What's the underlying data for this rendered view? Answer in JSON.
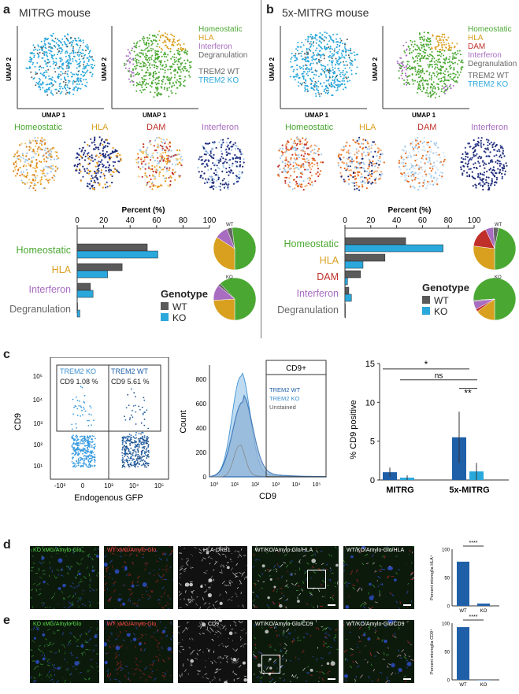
{
  "panel_a": {
    "letter": "a",
    "title": "MITRG mouse",
    "umap_axis_x": "UMAP 1",
    "umap_axis_y": "UMAP 2",
    "cluster_legend": [
      "Homeostatic",
      "HLA",
      "Interferon",
      "Degranulation"
    ],
    "genotype_legend": [
      "TREM2 WT",
      "TREM2 KO"
    ],
    "feature_titles": [
      "Homeostatic",
      "HLA",
      "DAM",
      "Interferon"
    ],
    "genotype_title": "Genotype",
    "genotype_items": [
      "WT",
      "KO"
    ],
    "pie_labels": [
      "WT",
      "KO"
    ]
  },
  "panel_b": {
    "letter": "b",
    "title": "5x-MITRG mouse",
    "umap_axis_x": "UMAP 1",
    "umap_axis_y": "UMAP 2",
    "cluster_legend": [
      "Homeostatic",
      "HLA",
      "DAM",
      "Interferon",
      "Degranulation"
    ],
    "genotype_legend": [
      "TREM2 WT",
      "TREM2 KO"
    ],
    "feature_titles": [
      "Homeostatic",
      "HLA",
      "DAM",
      "Interferon"
    ],
    "genotype_title": "Genotype",
    "genotype_items": [
      "WT",
      "KO"
    ],
    "pie_labels": [
      "WT",
      "KO"
    ]
  },
  "panel_c": {
    "letter": "c",
    "flow": {
      "gate_left": "TREM2 KO",
      "gate_left_val": "CD9 1.08 %",
      "gate_right": "TREM2 WT",
      "gate_right_val": "CD9 5.61 %",
      "ylabel": "CD9",
      "xlabel": "Endogenous GFP",
      "yticks": [
        "10⁵",
        "10⁴",
        "10³",
        "10²",
        "10¹"
      ],
      "xticks": [
        "-10³",
        "0",
        "10³",
        "10⁴",
        "10⁵"
      ]
    },
    "hist": {
      "gate": "CD9+",
      "legend": [
        "TREM2 WT",
        "TREM2 KO",
        "Unstained"
      ],
      "ylabel": "Count",
      "xlabel": "CD9",
      "yticks": [
        "800",
        "600",
        "400",
        "200",
        "0"
      ],
      "xticks": [
        "10⁰",
        "10¹",
        "10²",
        "10³",
        "10⁴",
        "10⁵"
      ]
    }
  },
  "panel_d": {
    "letter": "d",
    "tags": [
      "KO xMG/Amylo-Glo",
      "WT xMG/Amylo-Glo",
      "HLA-DRB1",
      "WT/KO/Amylo-Glo/HLA",
      "WT/KO/Amylo-Glo/HLA"
    ],
    "mini_ylabel": "Percent microglia HLA⁺",
    "sig": "****"
  },
  "panel_e": {
    "letter": "e",
    "tags": [
      "KO xMG/Amylo-Glo",
      "WT xMG/Amylo-Glo",
      "CD9",
      "WT/KO/Amylo-Glo/CD9",
      "WT/KO/Amylo-Glo/CD9"
    ],
    "mini_ylabel": "Percent microglia CD9⁺",
    "sig": "****"
  },
  "colors": {
    "homeostatic": "#4aa832",
    "hla": "#d9a020",
    "dam": "#c0302a",
    "interferon": "#a86cc0",
    "degranulation": "#666666",
    "wt": "#5a5a5a",
    "ko": "#2aa8dc",
    "dark_blue": "#1f5fa8"
  },
  "chart_data": [
    {
      "id": "a_bar",
      "type": "bar",
      "title": "Percent (%)",
      "categories": [
        "Homeostatic",
        "HLA",
        "Interferon",
        "Degranulation"
      ],
      "series": [
        {
          "name": "WT",
          "values": [
            53,
            34,
            10,
            0
          ]
        },
        {
          "name": "KO",
          "values": [
            61,
            23,
            12,
            2
          ]
        }
      ],
      "xlim": [
        0,
        100
      ],
      "ticks": [
        "0",
        "20",
        "40",
        "60",
        "80",
        "100"
      ]
    },
    {
      "id": "a_pie_wt",
      "type": "pie",
      "title": "WT",
      "labels": [
        "Homeostatic",
        "HLA",
        "Interferon",
        "Degranulation"
      ],
      "values": [
        52,
        34,
        10,
        4
      ]
    },
    {
      "id": "a_pie_ko",
      "type": "pie",
      "title": "KO",
      "labels": [
        "Homeostatic",
        "HLA",
        "Interferon",
        "Degranulation"
      ],
      "values": [
        62,
        24,
        12,
        2
      ]
    },
    {
      "id": "b_bar",
      "type": "bar",
      "title": "Percent (%)",
      "categories": [
        "Homeostatic",
        "HLA",
        "DAM",
        "Interferon",
        "Degranulation"
      ],
      "series": [
        {
          "name": "WT",
          "values": [
            47,
            31,
            12,
            3,
            0
          ]
        },
        {
          "name": "KO",
          "values": [
            76,
            14,
            2,
            5,
            0
          ]
        }
      ],
      "xlim": [
        0,
        100
      ],
      "ticks": [
        "0",
        "20",
        "40",
        "60",
        "80",
        "100"
      ]
    },
    {
      "id": "b_pie_wt",
      "type": "pie",
      "title": "WT",
      "labels": [
        "Homeostatic",
        "HLA",
        "DAM",
        "Interferon",
        "Degranulation"
      ],
      "values": [
        47,
        27,
        16,
        6,
        4
      ]
    },
    {
      "id": "b_pie_ko",
      "type": "pie",
      "title": "KO",
      "labels": [
        "Homeostatic",
        "HLA",
        "DAM",
        "Interferon",
        "Degranulation"
      ],
      "values": [
        76,
        15,
        2,
        6,
        1
      ]
    },
    {
      "id": "c_cd9",
      "type": "bar",
      "ylabel": "% CD9 positive",
      "categories": [
        "MITRG",
        "5x-MITRG"
      ],
      "series": [
        {
          "name": "WT",
          "values": [
            1.0,
            5.5
          ]
        },
        {
          "name": "KO",
          "values": [
            0.3,
            1.1
          ]
        }
      ],
      "ylim": [
        0,
        15
      ],
      "yticks": [
        "0",
        "5",
        "10",
        "15"
      ],
      "annotations": [
        "*",
        "ns",
        "**"
      ]
    },
    {
      "id": "d_hla",
      "type": "bar",
      "categories": [
        "WT",
        "KO"
      ],
      "values": [
        78,
        4
      ],
      "ylim": [
        0,
        100
      ],
      "yticks": [
        "0",
        "50",
        "100"
      ]
    },
    {
      "id": "e_cd9",
      "type": "bar",
      "categories": [
        "WT",
        "KO"
      ],
      "values": [
        93,
        0
      ],
      "ylim": [
        0,
        100
      ],
      "yticks": [
        "0",
        "50",
        "100"
      ]
    }
  ]
}
